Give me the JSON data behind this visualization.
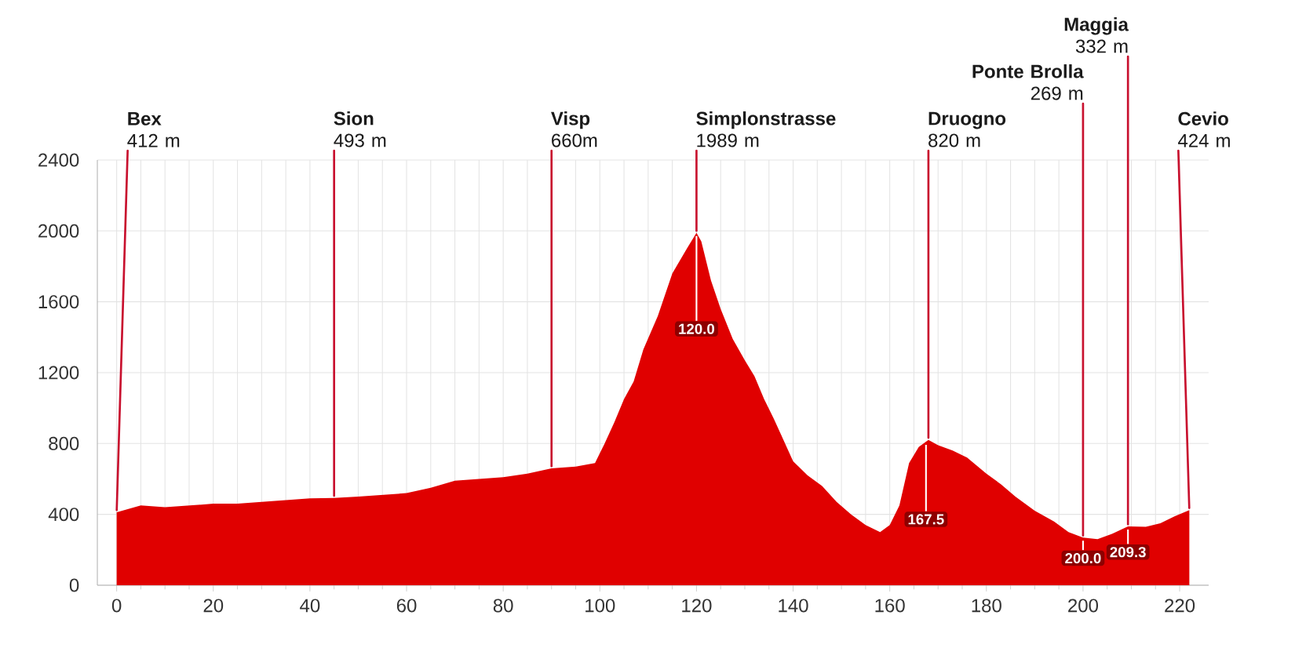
{
  "chart_data": {
    "type": "area",
    "x": [
      0,
      5,
      10,
      15,
      20,
      25,
      30,
      35,
      40,
      45,
      50,
      55,
      60,
      65,
      70,
      75,
      80,
      85,
      90,
      95,
      99,
      101,
      103,
      105,
      107,
      109,
      112,
      115,
      118,
      120,
      121,
      123,
      125,
      127.5,
      130,
      132,
      134,
      136,
      137.5,
      140,
      143,
      146,
      149,
      152,
      155,
      158,
      160,
      162,
      164,
      166,
      168,
      170,
      173,
      176,
      180,
      183,
      186,
      190,
      194,
      197,
      200,
      203,
      206,
      209.3,
      213,
      216,
      219,
      222
    ],
    "values": [
      412,
      450,
      440,
      450,
      460,
      460,
      470,
      480,
      490,
      493,
      500,
      510,
      520,
      550,
      590,
      600,
      610,
      630,
      660,
      670,
      690,
      800,
      920,
      1050,
      1150,
      1330,
      1520,
      1760,
      1900,
      1989,
      1940,
      1720,
      1560,
      1390,
      1270,
      1180,
      1050,
      940,
      850,
      700,
      620,
      560,
      470,
      400,
      340,
      300,
      340,
      450,
      690,
      780,
      820,
      790,
      760,
      720,
      630,
      570,
      500,
      420,
      360,
      300,
      269,
      260,
      290,
      332,
      330,
      350,
      390,
      424
    ],
    "color": "#e00000",
    "xlim": [
      -4,
      226
    ],
    "ylim": [
      0,
      2400
    ],
    "xticks": [
      0,
      20,
      40,
      60,
      80,
      100,
      120,
      140,
      160,
      180,
      200,
      220
    ],
    "yticks": [
      0,
      400,
      800,
      1200,
      1600,
      2000,
      2400
    ],
    "grid": true,
    "annotations": [
      {
        "text": "**Bex**\n412 m",
        "x": 0,
        "y": 412
      },
      {
        "text": "**Sion**\n493 m",
        "x": 45,
        "y": 493
      },
      {
        "text": "**Visp**\n660m",
        "x": 90,
        "y": 660
      },
      {
        "text": "**Simplonstrasse**\n1989 m",
        "x": 120,
        "y": 1989
      },
      {
        "text": "**Druogno**\n820 m",
        "x": 168,
        "y": 820
      },
      {
        "text": "**Ponte Brolla**\n269 m",
        "x": 200,
        "y": 269
      },
      {
        "text": "**Maggia**\n332 m",
        "x": 209.3,
        "y": 332
      },
      {
        "text": "**Cevio**\n424 m",
        "x": 222,
        "y": 424
      },
      {
        "text": "120.0",
        "x": 120,
        "y": 1989
      },
      {
        "text": "167.5",
        "x": 167.5,
        "y": 810
      },
      {
        "text": "200.0",
        "x": 200,
        "y": 269
      },
      {
        "text": "209.3",
        "x": 209.3,
        "y": 332
      }
    ]
  }
}
